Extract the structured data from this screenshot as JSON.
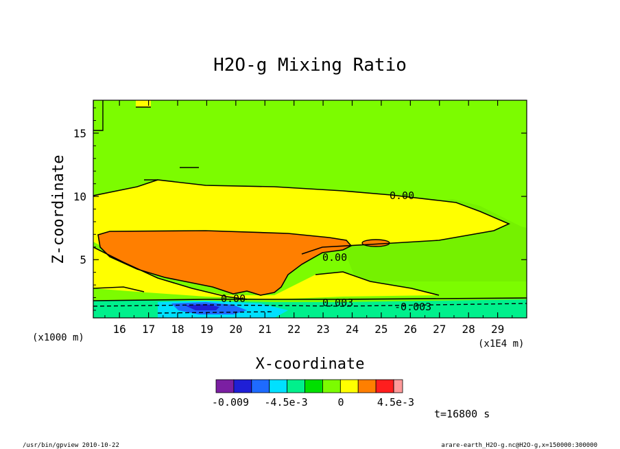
{
  "chart_data": {
    "type": "contour",
    "title": "H2O-g Mixing Ratio",
    "xlabel": "X-coordinate",
    "ylabel": "Z-coordinate",
    "x_unit_left": "(x1000 m)",
    "x_unit_right": "(x1E4 m)",
    "xlim": [
      15.1,
      30.0
    ],
    "ylim": [
      0.4,
      17.6
    ],
    "xticks": [
      "16",
      "17",
      "18",
      "19",
      "20",
      "21",
      "22",
      "23",
      "24",
      "25",
      "26",
      "27",
      "28",
      "29"
    ],
    "yticks": [
      "5",
      "10",
      "15"
    ],
    "contour_labels": [
      "0.00",
      "0.00",
      "0.00",
      "0.003",
      "-0.003"
    ],
    "colorbar": {
      "colors": [
        "#7b1fa2",
        "#1f1fd6",
        "#1e6bff",
        "#00e0ff",
        "#00f08c",
        "#00e000",
        "#7cfc00",
        "#ffff00",
        "#ff7f00",
        "#ff1e1e",
        "#ff9a9a"
      ],
      "tick_labels": [
        "-0.009",
        "-4.5e-3",
        "0",
        "4.5e-3"
      ]
    },
    "time_label": "t=16800 s",
    "footer_left": "/usr/bin/gpview   2010-10-22",
    "footer_right": "arare-earth_H2O-g.nc@H2O-g,x=150000:300000"
  }
}
